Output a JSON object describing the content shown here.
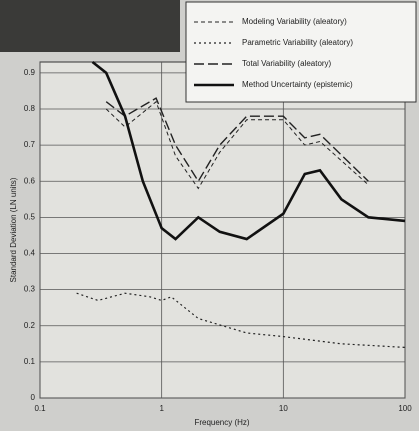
{
  "chart_data": {
    "type": "line",
    "x_label": "Frequency (Hz)",
    "y_label": "Standard Deviation (LN units)",
    "xlim": [
      0.1,
      100
    ],
    "xticks": [
      0.1,
      1,
      10,
      100
    ],
    "x_scale": "log",
    "ylim": [
      0,
      0.93
    ],
    "yticks": [
      0,
      0.1,
      0.2,
      0.3,
      0.4,
      0.5,
      0.6,
      0.7,
      0.8,
      0.9
    ],
    "grid": true,
    "legend": "upper right",
    "series": [
      {
        "name": "Modeling Variability (aleatory)",
        "color": "#222222",
        "style": "dashed",
        "x": [
          0.35,
          0.5,
          0.9,
          1.3,
          2,
          3,
          5,
          10,
          15,
          20,
          50
        ],
        "values": [
          0.8,
          0.75,
          0.82,
          0.67,
          0.58,
          0.68,
          0.77,
          0.77,
          0.7,
          0.71,
          0.59
        ]
      },
      {
        "name": "Parametric Variability (aleatory)",
        "color": "#222222",
        "style": "dotted",
        "x": [
          0.2,
          0.3,
          0.5,
          0.8,
          1,
          1.2,
          2,
          5,
          10,
          30,
          100
        ],
        "values": [
          0.29,
          0.27,
          0.29,
          0.28,
          0.27,
          0.28,
          0.22,
          0.18,
          0.17,
          0.15,
          0.14
        ]
      },
      {
        "name": "Total Variability (aleatory)",
        "color": "#222222",
        "style": "long-dash",
        "x": [
          0.35,
          0.5,
          0.9,
          1.3,
          2,
          3,
          5,
          10,
          15,
          20,
          50
        ],
        "values": [
          0.82,
          0.78,
          0.83,
          0.7,
          0.6,
          0.7,
          0.78,
          0.78,
          0.72,
          0.73,
          0.6
        ]
      },
      {
        "name": "Method Uncertainty (epistemic)",
        "color": "#111111",
        "style": "solid",
        "x": [
          0.27,
          0.35,
          0.5,
          0.7,
          1,
          1.3,
          2,
          3,
          5,
          10,
          15,
          20,
          30,
          50,
          100
        ],
        "values": [
          0.93,
          0.9,
          0.78,
          0.6,
          0.47,
          0.44,
          0.5,
          0.46,
          0.44,
          0.51,
          0.62,
          0.63,
          0.55,
          0.5,
          0.49
        ]
      }
    ]
  }
}
